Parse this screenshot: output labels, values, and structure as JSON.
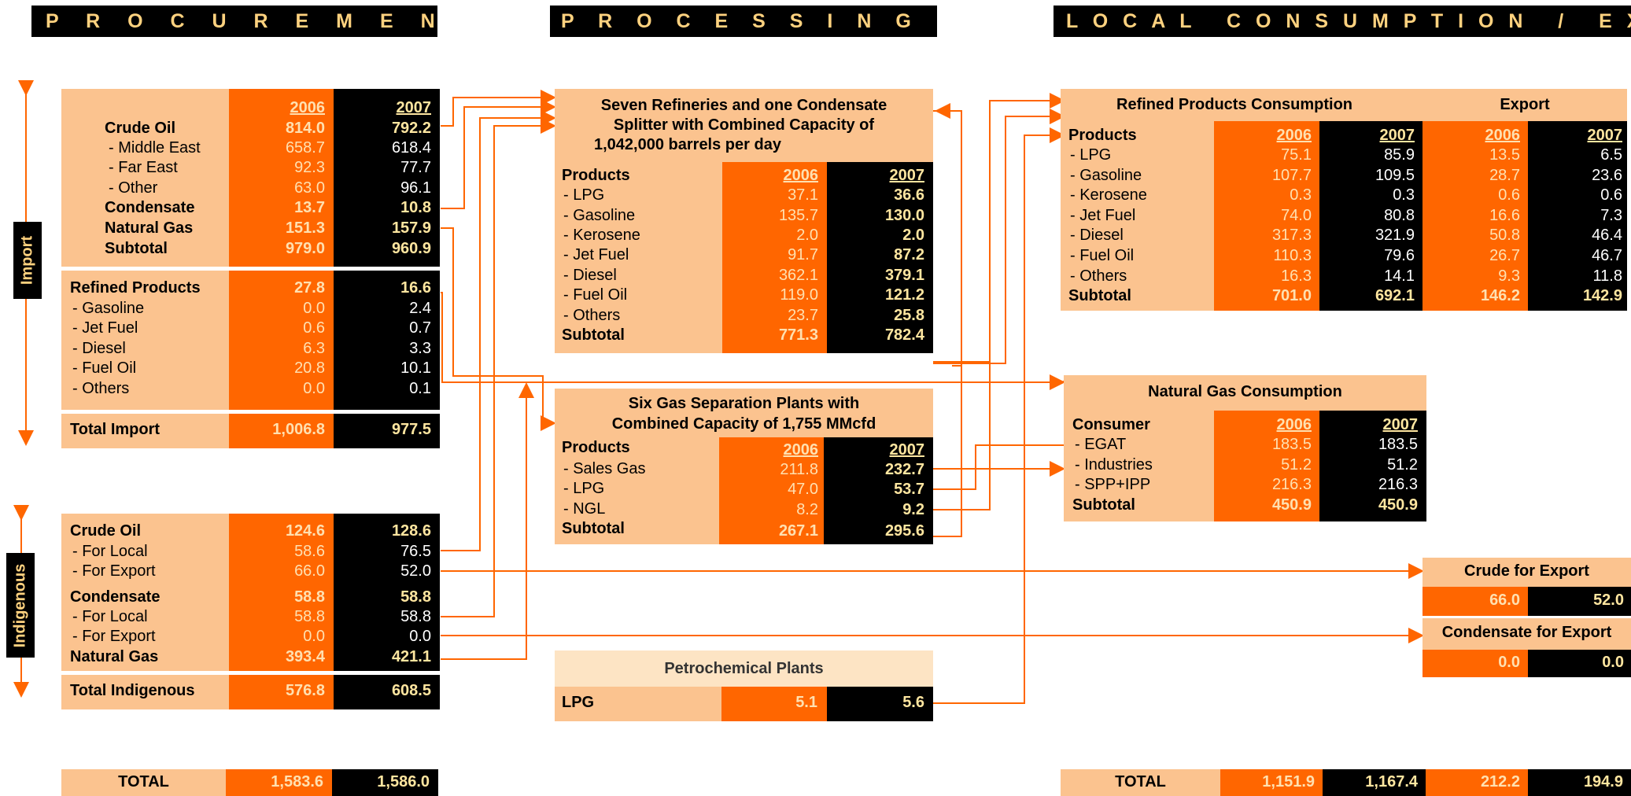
{
  "headers": {
    "procurement": "P R O C U R E M E N T",
    "processing": "P R O C E S S I N G",
    "consumption": "L O C A L   C O N S U M P T I O N   /   E X P O R T"
  },
  "side_labels": {
    "import": "Import",
    "indigenous": "Indigenous"
  },
  "years": {
    "y1": "2006",
    "y2": "2007"
  },
  "import_crude": {
    "rows": [
      {
        "label": "Crude Oil",
        "v1": "814.0",
        "v2": "792.2"
      },
      {
        "label": "- Middle East",
        "v1": "658.7",
        "v2": "618.4"
      },
      {
        "label": "- Far East",
        "v1": "92.3",
        "v2": "77.7"
      },
      {
        "label": "- Other",
        "v1": "63.0",
        "v2": "96.1"
      },
      {
        "label": "Condensate",
        "v1": "13.7",
        "v2": "10.8"
      },
      {
        "label": "Natural Gas",
        "v1": "151.3",
        "v2": "157.9"
      },
      {
        "label": "Subtotal",
        "v1": "979.0",
        "v2": "960.9"
      }
    ]
  },
  "import_refined": {
    "rows": [
      {
        "label": "Refined Products",
        "v1": "27.8",
        "v2": "16.6"
      },
      {
        "label": "- Gasoline",
        "v1": "0.0",
        "v2": "2.4"
      },
      {
        "label": "- Jet Fuel",
        "v1": "0.6",
        "v2": "0.7"
      },
      {
        "label": "- Diesel",
        "v1": "6.3",
        "v2": "3.3"
      },
      {
        "label": "- Fuel Oil",
        "v1": "20.8",
        "v2": "10.1"
      },
      {
        "label": "- Others",
        "v1": "0.0",
        "v2": "0.1"
      }
    ]
  },
  "total_import": {
    "label": "Total Import",
    "v1": "1,006.8",
    "v2": "977.5"
  },
  "indigenous": {
    "rows": [
      {
        "label": "Crude Oil",
        "v1": "124.6",
        "v2": "128.6"
      },
      {
        "label": "- For Local",
        "v1": "58.6",
        "v2": "76.5"
      },
      {
        "label": "- For Export",
        "v1": "66.0",
        "v2": "52.0"
      },
      {
        "label": "Condensate",
        "v1": "58.8",
        "v2": "58.8"
      },
      {
        "label": "- For Local",
        "v1": "58.8",
        "v2": "58.8"
      },
      {
        "label": "- For Export",
        "v1": "0.0",
        "v2": "0.0"
      },
      {
        "label": "Natural Gas",
        "v1": "393.4",
        "v2": "421.1"
      }
    ]
  },
  "total_indigenous": {
    "label": "Total Indigenous",
    "v1": "576.8",
    "v2": "608.5"
  },
  "total_left": {
    "label": "TOTAL",
    "v1": "1,583.6",
    "v2": "1,586.0"
  },
  "refineries": {
    "title1": "Seven Refineries and one Condensate",
    "title2": "Splitter with Combined Capacity of",
    "title3": "1,042,000 barrels per day",
    "products_label": "Products",
    "rows": [
      {
        "label": "- LPG",
        "v1": "37.1",
        "v2": "36.6"
      },
      {
        "label": "- Gasoline",
        "v1": "135.7",
        "v2": "130.0"
      },
      {
        "label": "- Kerosene",
        "v1": "2.0",
        "v2": "2.0"
      },
      {
        "label": "- Jet Fuel",
        "v1": "91.7",
        "v2": "87.2"
      },
      {
        "label": "- Diesel",
        "v1": "362.1",
        "v2": "379.1"
      },
      {
        "label": "- Fuel Oil",
        "v1": "119.0",
        "v2": "121.2"
      },
      {
        "label": "- Others",
        "v1": "23.7",
        "v2": "25.8"
      },
      {
        "label": "Subtotal",
        "v1": "771.3",
        "v2": "782.4"
      }
    ]
  },
  "gas_sep": {
    "title1": "Six Gas Separation Plants with",
    "title2": "Combined Capacity of 1,755 MMcfd",
    "products_label": "Products",
    "rows": [
      {
        "label": "- Sales Gas",
        "v1": "211.8",
        "v2": "232.7"
      },
      {
        "label": "- LPG",
        "v1": "47.0",
        "v2": "53.7"
      },
      {
        "label": "- NGL",
        "v1": "8.2",
        "v2": "9.2"
      },
      {
        "label": "Subtotal",
        "v1": "267.1",
        "v2": "295.6"
      }
    ]
  },
  "petro": {
    "title": "Petrochemical Plants",
    "label": "LPG",
    "v1": "5.1",
    "v2": "5.6"
  },
  "refined_consumption": {
    "title": "Refined Products Consumption",
    "export_title": "Export",
    "products_label": "Products",
    "rows": [
      {
        "label": "- LPG",
        "v1": "75.1",
        "v2": "85.9",
        "e1": "13.5",
        "e2": "6.5"
      },
      {
        "label": "- Gasoline",
        "v1": "107.7",
        "v2": "109.5",
        "e1": "28.7",
        "e2": "23.6"
      },
      {
        "label": "- Kerosene",
        "v1": "0.3",
        "v2": "0.3",
        "e1": "0.6",
        "e2": "0.6"
      },
      {
        "label": "- Jet Fuel",
        "v1": "74.0",
        "v2": "80.8",
        "e1": "16.6",
        "e2": "7.3"
      },
      {
        "label": "- Diesel",
        "v1": "317.3",
        "v2": "321.9",
        "e1": "50.8",
        "e2": "46.4"
      },
      {
        "label": "- Fuel Oil",
        "v1": "110.3",
        "v2": "79.6",
        "e1": "26.7",
        "e2": "46.7"
      },
      {
        "label": "- Others",
        "v1": "16.3",
        "v2": "14.1",
        "e1": "9.3",
        "e2": "11.8"
      },
      {
        "label": "Subtotal",
        "v1": "701.0",
        "v2": "692.1",
        "e1": "146.2",
        "e2": "142.9"
      }
    ]
  },
  "gas_consumption": {
    "title": "Natural Gas Consumption",
    "consumer_label": "Consumer",
    "rows": [
      {
        "label": "- EGAT",
        "v1": "183.5",
        "v2": "183.5"
      },
      {
        "label": "- Industries",
        "v1": "51.2",
        "v2": "51.2"
      },
      {
        "label": "- SPP+IPP",
        "v1": "216.3",
        "v2": "216.3"
      },
      {
        "label": "Subtotal",
        "v1": "450.9",
        "v2": "450.9"
      }
    ]
  },
  "crude_export": {
    "title": "Crude for Export",
    "v1": "66.0",
    "v2": "52.0"
  },
  "condensate_export": {
    "title": "Condensate for Export",
    "v1": "0.0",
    "v2": "0.0"
  },
  "total_right": {
    "label": "TOTAL",
    "v1": "1,151.9",
    "v2": "1,167.4",
    "e1": "212.2",
    "e2": "194.9"
  }
}
